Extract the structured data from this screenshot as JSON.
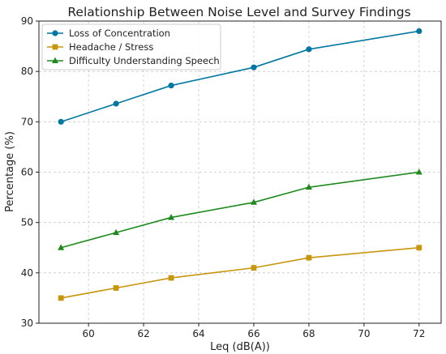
{
  "chart_data": {
    "type": "line",
    "title": "Relationship Between Noise Level and Survey Findings",
    "xlabel": "Leq (dB(A))",
    "ylabel": "Percentage (%)",
    "x": [
      59,
      61,
      63,
      66,
      68,
      72
    ],
    "xlim": [
      58.2,
      72.8
    ],
    "ylim": [
      30,
      90
    ],
    "xticks": [
      60,
      62,
      64,
      66,
      68,
      70,
      72
    ],
    "yticks": [
      30,
      40,
      50,
      60,
      70,
      80,
      90
    ],
    "grid": true,
    "legend_position": "top-left",
    "series": [
      {
        "name": "Loss of Concentration",
        "values": [
          70,
          73.6,
          77.2,
          80.8,
          84.4,
          88
        ],
        "color": "#0077a0",
        "marker": "circle"
      },
      {
        "name": "Headache / Stress",
        "values": [
          35,
          37,
          39,
          41,
          43,
          45
        ],
        "color": "#c8960c",
        "marker": "square"
      },
      {
        "name": "Difficulty Understanding Speech",
        "values": [
          45,
          48,
          51,
          54,
          57,
          60
        ],
        "color": "#1e8a1e",
        "marker": "triangle"
      }
    ]
  }
}
